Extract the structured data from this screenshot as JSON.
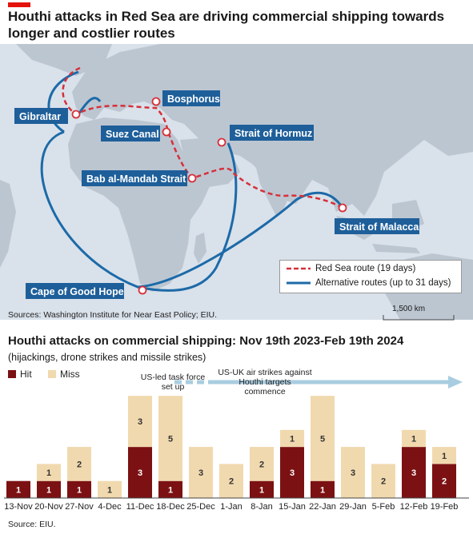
{
  "title": "Houthi attacks in Red Sea are driving commercial shipping towards longer and costlier routes",
  "colors": {
    "accent_red": "#e3120b",
    "sea": "#d9e1ea",
    "land": "#bcc6d1",
    "route_red": "#d6303a",
    "route_blue": "#1c6aa8",
    "label_bg": "#1e5f9a",
    "hit": "#7b1113",
    "miss": "#f1d9af",
    "arrow": "#a9cde0"
  },
  "map": {
    "locations": [
      {
        "name": "Gibraltar"
      },
      {
        "name": "Bosphorus"
      },
      {
        "name": "Suez Canal"
      },
      {
        "name": "Strait of Hormuz"
      },
      {
        "name": "Bab al-Mandab Strait"
      },
      {
        "name": "Strait of Malacca"
      },
      {
        "name": "Cape of Good Hope"
      }
    ],
    "legend": {
      "red_route": "Red Sea route (19 days)",
      "blue_route": "Alternative routes (up to 31 days)"
    },
    "scale": "1,500 km",
    "source": "Sources: Washington Institute for Near East Policy; EIU."
  },
  "chart_data": {
    "type": "bar",
    "title": "Houthi attacks on commercial shipping: Nov 19th 2023-Feb 19th 2024",
    "subtitle": "(hijackings, drone strikes and missile strikes)",
    "categories": [
      "13-Nov",
      "20-Nov",
      "27-Nov",
      "4-Dec",
      "11-Dec",
      "18-Dec",
      "25-Dec",
      "1-Jan",
      "8-Jan",
      "15-Jan",
      "22-Jan",
      "29-Jan",
      "5-Feb",
      "12-Feb",
      "19-Feb"
    ],
    "series": [
      {
        "name": "Hit",
        "values": [
          1,
          1,
          1,
          0,
          3,
          1,
          0,
          0,
          1,
          3,
          1,
          0,
          0,
          3,
          2
        ]
      },
      {
        "name": "Miss",
        "values": [
          0,
          1,
          2,
          1,
          3,
          5,
          3,
          2,
          2,
          1,
          5,
          3,
          2,
          1,
          1
        ]
      }
    ],
    "stacked": true,
    "ylim": [
      0,
      6
    ],
    "legend_position": "top-left",
    "annotations": [
      {
        "text": "US-led task force set up"
      },
      {
        "text": "US-UK air strikes against Houthi targets commence"
      }
    ],
    "source": "Source: EIU."
  }
}
